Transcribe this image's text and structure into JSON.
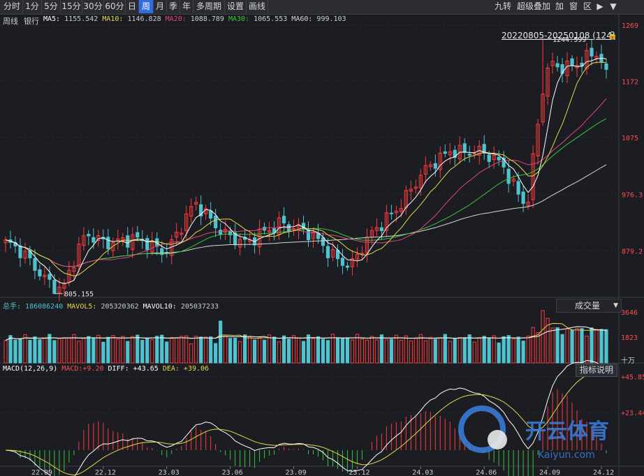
{
  "toolbar": {
    "periods": [
      "分时",
      "1分",
      "5分",
      "15分",
      "30分",
      "60分",
      "日",
      "周",
      "月",
      "季",
      "年",
      "多周期",
      "设置",
      "画线"
    ],
    "active": "周",
    "right": [
      "九转",
      "超级叠加",
      "加",
      "窗",
      "区"
    ]
  },
  "header": {
    "period_name": "周线",
    "security": "银行",
    "ma": [
      {
        "label": "MA5:",
        "value": "1155.542",
        "color": "#ffffff"
      },
      {
        "label": "MA10:",
        "value": "1146.828",
        "color": "#e6d84a"
      },
      {
        "label": "MA20:",
        "value": "1088.789",
        "color": "#e0457b"
      },
      {
        "label": "MA30:",
        "value": "1065.553",
        "color": "#39c43a"
      },
      {
        "label": "MA60:",
        "value": "999.103",
        "color": "#d8d8d8"
      }
    ],
    "range_label": "20220805-20250108 (124)"
  },
  "price_axis": [
    "1269",
    "1172",
    "1075",
    "976.3",
    "879.2"
  ],
  "annotations": {
    "high": "1244.599",
    "low": "805.155"
  },
  "volume": {
    "label": "总手:",
    "value": "186086240",
    "mavol5_label": "MAVOL5:",
    "mavol5": "205320362",
    "mavol10_label": "MAVOL10:",
    "mavol10": "205037233",
    "axis": [
      "3646",
      "1823",
      "十万"
    ],
    "select": "成交量"
  },
  "macd": {
    "label": "MACD(12,26,9)",
    "macd_label": "MACD:",
    "macd": "+9.20",
    "diff_label": "DIFF:",
    "diff": "+43.65",
    "dea_label": "DEA:",
    "dea": "+39.06",
    "axis": [
      "+45.85",
      "+23.44"
    ],
    "button": "指标说明"
  },
  "x_ticks": [
    "22.09",
    "22.12",
    "23.03",
    "23.06",
    "23.09",
    "23.12",
    "24.03",
    "24.06",
    "24.09",
    "24.12"
  ],
  "watermark": {
    "brand": "开云体育",
    "domain": "Kaiyun.com"
  },
  "colors": {
    "up": "#ff3b3b",
    "down": "#4fc3cf",
    "ma5": "#ffffff",
    "ma10": "#e6d84a",
    "ma20": "#e0457b",
    "ma30": "#39c43a",
    "ma60": "#d8d8d8",
    "axis_red": "#ff4d4d"
  },
  "chart_data": {
    "type": "candlestick",
    "ylim": [
      800,
      1269
    ],
    "anchors": [
      {
        "x": "2022-08-05",
        "close": 893
      },
      {
        "x": "2022-10-28",
        "close": 812
      },
      {
        "x": "2022-12-02",
        "close": 905
      },
      {
        "x": "2023-03-31",
        "close": 885
      },
      {
        "x": "2023-05-12",
        "close": 955
      },
      {
        "x": "2023-07-28",
        "close": 885
      },
      {
        "x": "2023-09-15",
        "close": 935
      },
      {
        "x": "2023-12-29",
        "close": 855
      },
      {
        "x": "2024-02-23",
        "close": 945
      },
      {
        "x": "2024-05-24",
        "close": 1060
      },
      {
        "x": "2024-08-09",
        "close": 1030
      },
      {
        "x": "2024-09-13",
        "close": 955
      },
      {
        "x": "2024-10-11",
        "close": 1195
      },
      {
        "x": "2024-12-27",
        "close": 1215
      },
      {
        "x": "2025-01-08",
        "close": 1178
      }
    ]
  }
}
